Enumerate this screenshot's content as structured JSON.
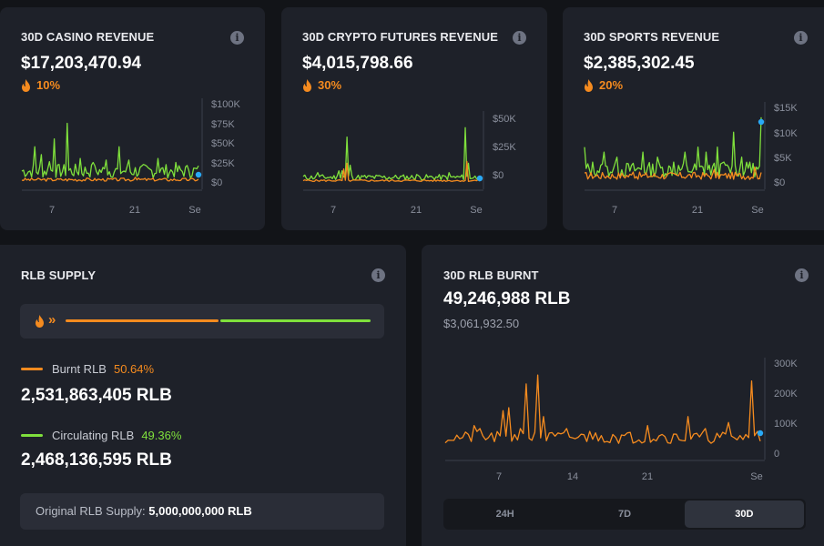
{
  "colors": {
    "orange": "#f58b1f",
    "green": "#7fe03c",
    "blue": "#29a9f5"
  },
  "casino": {
    "title": "30D CASINO REVENUE",
    "value": "$17,203,470.94",
    "pct": "10%",
    "yticks": [
      "$100K",
      "$75K",
      "$50K",
      "$25K",
      "$0"
    ],
    "xticks": [
      "7",
      "21",
      "Se"
    ]
  },
  "crypto": {
    "title": "30D CRYPTO FUTURES REVENUE",
    "value": "$4,015,798.66",
    "pct": "30%",
    "yticks": [
      "$50K",
      "$25K",
      "$0"
    ],
    "xticks": [
      "7",
      "21",
      "Se"
    ]
  },
  "sports": {
    "title": "30D SPORTS REVENUE",
    "value": "$2,385,302.45",
    "pct": "20%",
    "yticks": [
      "$15K",
      "$10K",
      "$5K",
      "$0"
    ],
    "xticks": [
      "7",
      "21",
      "Se"
    ]
  },
  "supply": {
    "title": "RLB SUPPLY",
    "burnt_label": "Burnt RLB",
    "burnt_pct": "50.64%",
    "burnt_amount": "2,531,863,405 RLB",
    "circ_label": "Circulating RLB",
    "circ_pct": "49.36%",
    "circ_amount": "2,468,136,595 RLB",
    "burnt_fraction": 0.5064,
    "original_label": "Original RLB Supply:",
    "original_value": "5,000,000,000 RLB"
  },
  "burnt": {
    "title": "30D RLB BURNT",
    "value": "49,246,988 RLB",
    "usd": "$3,061,932.50",
    "yticks": [
      "300K",
      "200K",
      "100K",
      "0"
    ],
    "xticks": [
      "7",
      "14",
      "21",
      "Se"
    ],
    "toggle": [
      "24H",
      "7D",
      "30D"
    ],
    "active": "30D"
  }
}
